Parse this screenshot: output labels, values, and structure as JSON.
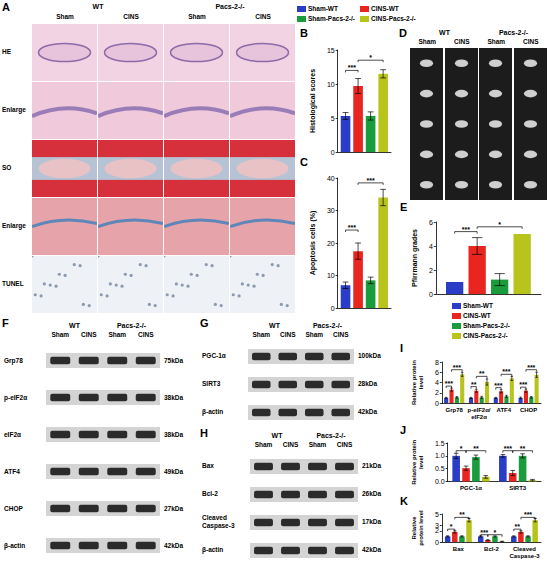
{
  "image_panels": [
    {
      "panel": "A",
      "groups": [
        "WT",
        "Pacs-2-/-"
      ],
      "columns": [
        "Sham",
        "CINS",
        "Sham",
        "CINS"
      ],
      "rows": [
        "HE",
        "Enlarge",
        "SO",
        "Enlarge",
        "TUNEL"
      ]
    },
    {
      "panel": "D",
      "groups": [
        "WT",
        "Pacs-2-/-"
      ],
      "columns": [
        "Sham",
        "CINS",
        "Sham",
        "CINS"
      ]
    },
    {
      "panel": "F",
      "groups": [
        "WT",
        "Pacs-2-/-"
      ],
      "columns": [
        "Sham",
        "CINS",
        "Sham",
        "CINS"
      ],
      "blots": [
        {
          "protein": "Grp78",
          "size": "75kDa"
        },
        {
          "protein": "p-eIF2α",
          "size": "38kDa"
        },
        {
          "protein": "eIF2α",
          "size": "38kDa"
        },
        {
          "protein": "ATF4",
          "size": "49kDa"
        },
        {
          "protein": "CHOP",
          "size": "27kDa"
        },
        {
          "protein": "β-actin",
          "size": "42kDa"
        }
      ]
    },
    {
      "panel": "G",
      "groups": [
        "WT",
        "Pacs-2-/-"
      ],
      "columns": [
        "Sham",
        "CINS",
        "Sham",
        "CINS"
      ],
      "blots": [
        {
          "protein": "PGC-1α",
          "size": "100kDa"
        },
        {
          "protein": "SIRT3",
          "size": "28kDa"
        },
        {
          "protein": "β-actin",
          "size": "42kDa"
        }
      ]
    },
    {
      "panel": "H",
      "groups": [
        "WT",
        "Pacs-2-/-"
      ],
      "columns": [
        "Sham",
        "CINS",
        "Sham",
        "CINS"
      ],
      "blots": [
        {
          "protein": "Bax",
          "size": "21kDa"
        },
        {
          "protein": "Bcl-2",
          "size": "26kDa"
        },
        {
          "protein": "Cleaved Caspase-3",
          "size": "17kDa"
        },
        {
          "protein": "β-actin",
          "size": "42kDa"
        }
      ]
    }
  ],
  "chart_data": [
    {
      "panel": "B",
      "type": "bar",
      "ylabel": "Histological scores",
      "categories": [
        null
      ],
      "series": [
        {
          "name": "Sham-WT",
          "color": "#2a3dc6",
          "values": [
            5.3
          ],
          "errors": [
            0.5
          ]
        },
        {
          "name": "CINS-WT",
          "color": "#e8251e",
          "values": [
            9.7
          ],
          "errors": [
            1.1
          ]
        },
        {
          "name": "Sham-Pacs-2-/-",
          "color": "#1a9b3c",
          "values": [
            5.3
          ],
          "errors": [
            0.6
          ]
        },
        {
          "name": "CINS-Pacs-2-/-",
          "color": "#b8c41b",
          "values": [
            11.5
          ],
          "errors": [
            0.6
          ]
        }
      ],
      "ylim": [
        0,
        15
      ],
      "yticks": [
        0,
        5,
        10,
        15
      ],
      "tick_labels": "y",
      "legend": "top",
      "annotations": [
        {
          "category": 0,
          "from": 0,
          "to": 1,
          "y": 12,
          "text": "***"
        },
        {
          "category": 0,
          "from": 1,
          "to": 3,
          "y": 13.5,
          "text": "*"
        }
      ]
    },
    {
      "panel": "C",
      "type": "bar",
      "ylabel": "Apoptosis cells (%)",
      "categories": [
        null
      ],
      "series": [
        {
          "name": "Sham-WT",
          "color": "#2a3dc6",
          "values": [
            7
          ],
          "errors": [
            1
          ]
        },
        {
          "name": "CINS-WT",
          "color": "#e8251e",
          "values": [
            17.5
          ],
          "errors": [
            2.5
          ]
        },
        {
          "name": "Sham-Pacs-2-/-",
          "color": "#1a9b3c",
          "values": [
            8.5
          ],
          "errors": [
            1
          ]
        },
        {
          "name": "CINS-Pacs-2-/-",
          "color": "#b8c41b",
          "values": [
            34
          ],
          "errors": [
            2.5
          ]
        }
      ],
      "ylim": [
        0,
        40
      ],
      "yticks": [
        0,
        10,
        20,
        30,
        40
      ],
      "tick_labels": "y",
      "annotations": [
        {
          "category": 0,
          "from": 0,
          "to": 1,
          "y": 24,
          "text": "***"
        },
        {
          "category": 0,
          "from": 1,
          "to": 3,
          "y": 38.5,
          "text": "***"
        }
      ]
    },
    {
      "panel": "E",
      "type": "bar",
      "ylabel": "Pfirrmann grades",
      "categories": [
        null
      ],
      "series": [
        {
          "name": "Sham-WT",
          "color": "#2a3dc6",
          "values": [
            1
          ],
          "errors": [
            0
          ]
        },
        {
          "name": "CINS-WT",
          "color": "#e8251e",
          "values": [
            4
          ],
          "errors": [
            0.7
          ]
        },
        {
          "name": "Sham-Pacs-2-/-",
          "color": "#1a9b3c",
          "values": [
            1.2
          ],
          "errors": [
            0.5
          ]
        },
        {
          "name": "CINS-Pacs-2-/-",
          "color": "#b8c41b",
          "values": [
            5
          ],
          "errors": [
            0
          ]
        }
      ],
      "ylim": [
        0,
        6
      ],
      "yticks": [
        0,
        2,
        4,
        6
      ],
      "tick_labels": "y",
      "legend": "bottom",
      "annotations": [
        {
          "category": 0,
          "from": 0,
          "to": 1,
          "y": 5.2,
          "text": "***"
        },
        {
          "category": 0,
          "from": 1,
          "to": 3,
          "y": 5.6,
          "text": "*"
        }
      ]
    },
    {
      "panel": "I",
      "type": "bar",
      "ylabel": "Relative protein level",
      "categories": [
        "Grp78",
        "p-eIF2α/eIF2α",
        "ATF4",
        "CHOP"
      ],
      "series": [
        {
          "name": "Sham-WT",
          "color": "#2a3dc6",
          "values": [
            1,
            1,
            1,
            1
          ],
          "errors": [
            0.1,
            0.1,
            0.1,
            0.15
          ]
        },
        {
          "name": "CINS-WT",
          "color": "#e8251e",
          "values": [
            2.6,
            2.4,
            2.3,
            2.4
          ],
          "errors": [
            0.3,
            0.3,
            0.3,
            0.3
          ]
        },
        {
          "name": "Sham-Pacs-2-/-",
          "color": "#1a9b3c",
          "values": [
            1.1,
            1.1,
            1.3,
            1.1
          ],
          "errors": [
            0.15,
            0.2,
            0.2,
            0.15
          ]
        },
        {
          "name": "CINS-Pacs-2-/-",
          "color": "#b8c41b",
          "values": [
            5.6,
            4.1,
            4.8,
            5.5
          ],
          "errors": [
            0.4,
            0.6,
            0.4,
            0.5
          ]
        }
      ],
      "ylim": [
        0,
        8
      ],
      "yticks": [
        0,
        2,
        4,
        6,
        8
      ],
      "annotations": [
        {
          "category": 0,
          "from": 0,
          "to": 1,
          "y": 3.3,
          "text": "***"
        },
        {
          "category": 0,
          "from": 1,
          "to": 3,
          "y": 6.5,
          "text": "***"
        },
        {
          "category": 1,
          "from": 0,
          "to": 1,
          "y": 3.2,
          "text": "**"
        },
        {
          "category": 1,
          "from": 1,
          "to": 3,
          "y": 5.2,
          "text": "**"
        },
        {
          "category": 2,
          "from": 0,
          "to": 1,
          "y": 3.0,
          "text": "***"
        },
        {
          "category": 2,
          "from": 1,
          "to": 3,
          "y": 5.6,
          "text": "***"
        },
        {
          "category": 3,
          "from": 0,
          "to": 1,
          "y": 3.1,
          "text": "***"
        },
        {
          "category": 3,
          "from": 1,
          "to": 3,
          "y": 6.5,
          "text": "***"
        }
      ]
    },
    {
      "panel": "J",
      "type": "bar",
      "ylabel": "Relative protein level",
      "categories": [
        "PGC-1α",
        "SIRT3"
      ],
      "series": [
        {
          "name": "Sham-WT",
          "color": "#2a3dc6",
          "values": [
            1,
            1
          ],
          "errors": [
            0.1,
            0.05
          ]
        },
        {
          "name": "CINS-WT",
          "color": "#e8251e",
          "values": [
            0.52,
            0.33
          ],
          "errors": [
            0.08,
            0.1
          ]
        },
        {
          "name": "Sham-Pacs-2-/-",
          "color": "#1a9b3c",
          "values": [
            0.95,
            1.0
          ],
          "errors": [
            0.08,
            0.08
          ]
        },
        {
          "name": "CINS-Pacs-2-/-",
          "color": "#b8c41b",
          "values": [
            0.18,
            0.05
          ],
          "errors": [
            0.05,
            0.03
          ]
        }
      ],
      "ylim": [
        0,
        1.5
      ],
      "yticks": [
        {
          "value": 0,
          "label": "0.0"
        },
        0.5,
        {
          "value": 1,
          "label": "1.0"
        },
        1.5
      ],
      "annotations": [
        {
          "category": 0,
          "from": 0,
          "to": 1,
          "y": 1.2,
          "text": "*"
        },
        {
          "category": 0,
          "from": 1,
          "to": 3,
          "y": 1.2,
          "text": "**"
        },
        {
          "category": 1,
          "from": 0,
          "to": 1,
          "y": 1.2,
          "text": "***"
        },
        {
          "category": 1,
          "from": 1,
          "to": 3,
          "y": 1.2,
          "text": "**"
        }
      ]
    },
    {
      "panel": "K",
      "type": "bar",
      "ylabel": "Relative protein level",
      "categories": [
        "Bax",
        "Bcl-2",
        "Cleaved Caspase-3"
      ],
      "series": [
        {
          "name": "Sham-WT",
          "color": "#2a3dc6",
          "values": [
            1,
            1,
            1
          ],
          "errors": [
            0.1,
            0.1,
            0.1
          ]
        },
        {
          "name": "CINS-WT",
          "color": "#e8251e",
          "values": [
            1.8,
            0.35,
            1.8
          ],
          "errors": [
            0.2,
            0.05,
            0.2
          ]
        },
        {
          "name": "Sham-Pacs-2-/-",
          "color": "#1a9b3c",
          "values": [
            1.0,
            1.0,
            1.0
          ],
          "errors": [
            0.1,
            0.1,
            0.1
          ]
        },
        {
          "name": "CINS-Pacs-2-/-",
          "color": "#b8c41b",
          "values": [
            3.9,
            0.1,
            3.9
          ],
          "errors": [
            0.3,
            0.03,
            0.3
          ]
        }
      ],
      "ylim": [
        0,
        5
      ],
      "yticks": [
        0,
        1,
        2,
        3,
        4,
        5
      ],
      "annotations": [
        {
          "category": 0,
          "from": 0,
          "to": 1,
          "y": 2.3,
          "text": "*"
        },
        {
          "category": 0,
          "from": 1,
          "to": 3,
          "y": 4.4,
          "text": "**"
        },
        {
          "category": 1,
          "from": 0,
          "to": 1,
          "y": 1.3,
          "text": "***"
        },
        {
          "category": 1,
          "from": 1,
          "to": 3,
          "y": 1.3,
          "text": "*"
        },
        {
          "category": 2,
          "from": 0,
          "to": 1,
          "y": 2.3,
          "text": "**"
        },
        {
          "category": 2,
          "from": 1,
          "to": 3,
          "y": 4.4,
          "text": "***"
        }
      ]
    }
  ]
}
